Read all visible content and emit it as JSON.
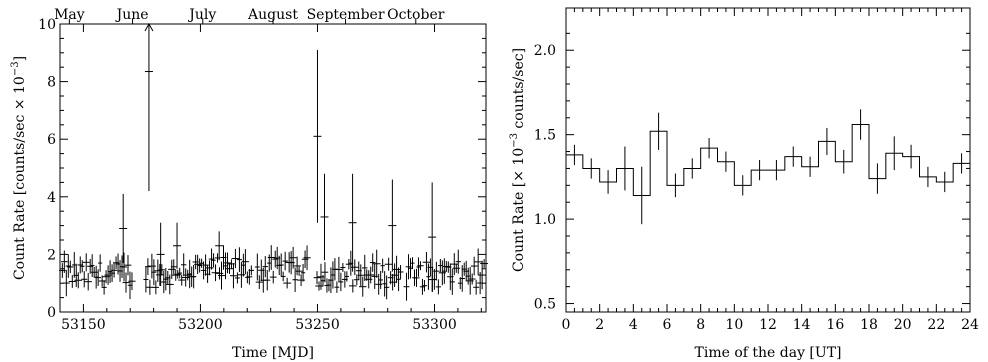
{
  "chart_data": [
    {
      "type": "scatter",
      "xlabel": "Time [MJD]",
      "ylabel_prefix": "Count Rate [counts/sec × 10",
      "ylabel_exp": "−3",
      "ylabel_suffix": "]",
      "xlim": [
        53140,
        53322
      ],
      "ylim": [
        0,
        10
      ],
      "xticks": [
        53150,
        53200,
        53250,
        53300
      ],
      "yticks": [
        0,
        2,
        4,
        6,
        8,
        10
      ],
      "top_axis_labels": [
        {
          "label": "May",
          "x": 53144
        },
        {
          "label": "June",
          "x": 53171
        },
        {
          "label": "July",
          "x": 53201
        },
        {
          "label": "August",
          "x": 53231
        },
        {
          "label": "September",
          "x": 53262
        },
        {
          "label": "October",
          "x": 53292
        }
      ],
      "outliers": [
        {
          "x": 53167,
          "y": 2.9,
          "err": 1.2
        },
        {
          "x": 53178,
          "y": 8.35,
          "err": 4.15,
          "arrow": true
        },
        {
          "x": 53183,
          "y": 2.0,
          "err": 1.1
        },
        {
          "x": 53190,
          "y": 2.3,
          "err": 0.8
        },
        {
          "x": 53208,
          "y": 2.3,
          "err": 0.5
        },
        {
          "x": 53250,
          "y": 6.1,
          "err": 3.0
        },
        {
          "x": 53253,
          "y": 3.3,
          "err": 1.5
        },
        {
          "x": 53265,
          "y": 3.1,
          "err": 1.7
        },
        {
          "x": 53282,
          "y": 3.0,
          "err": 1.6
        },
        {
          "x": 53299,
          "y": 2.6,
          "err": 1.9
        }
      ]
    },
    {
      "type": "line",
      "xlabel": "Time of the day [UT]",
      "ylabel_prefix": "Count Rate [× 10",
      "ylabel_exp": "−3",
      "ylabel_suffix": " counts/sec]",
      "xlim": [
        0,
        24
      ],
      "ylim": [
        0.45,
        2.25
      ],
      "xticks": [
        0,
        2,
        4,
        6,
        8,
        10,
        12,
        14,
        16,
        18,
        20,
        22,
        24
      ],
      "yticks": [
        "0.5",
        "1.0",
        "1.5",
        "2.0"
      ],
      "bins": [
        {
          "x": 0,
          "y": 1.38,
          "err": 0.06
        },
        {
          "x": 1,
          "y": 1.3,
          "err": 0.06
        },
        {
          "x": 2,
          "y": 1.22,
          "err": 0.07
        },
        {
          "x": 3,
          "y": 1.3,
          "err": 0.13
        },
        {
          "x": 4,
          "y": 1.14,
          "err": 0.17
        },
        {
          "x": 5,
          "y": 1.52,
          "err": 0.11
        },
        {
          "x": 6,
          "y": 1.2,
          "err": 0.07
        },
        {
          "x": 7,
          "y": 1.3,
          "err": 0.06
        },
        {
          "x": 8,
          "y": 1.42,
          "err": 0.06
        },
        {
          "x": 9,
          "y": 1.34,
          "err": 0.06
        },
        {
          "x": 10,
          "y": 1.2,
          "err": 0.06
        },
        {
          "x": 11,
          "y": 1.29,
          "err": 0.06
        },
        {
          "x": 12,
          "y": 1.29,
          "err": 0.06
        },
        {
          "x": 13,
          "y": 1.37,
          "err": 0.06
        },
        {
          "x": 14,
          "y": 1.31,
          "err": 0.06
        },
        {
          "x": 15,
          "y": 1.46,
          "err": 0.08
        },
        {
          "x": 16,
          "y": 1.34,
          "err": 0.07
        },
        {
          "x": 17,
          "y": 1.56,
          "err": 0.09
        },
        {
          "x": 18,
          "y": 1.24,
          "err": 0.09
        },
        {
          "x": 19,
          "y": 1.39,
          "err": 0.1
        },
        {
          "x": 20,
          "y": 1.37,
          "err": 0.07
        },
        {
          "x": 21,
          "y": 1.25,
          "err": 0.06
        },
        {
          "x": 22,
          "y": 1.22,
          "err": 0.06
        },
        {
          "x": 23,
          "y": 1.33,
          "err": 0.06
        }
      ]
    }
  ]
}
